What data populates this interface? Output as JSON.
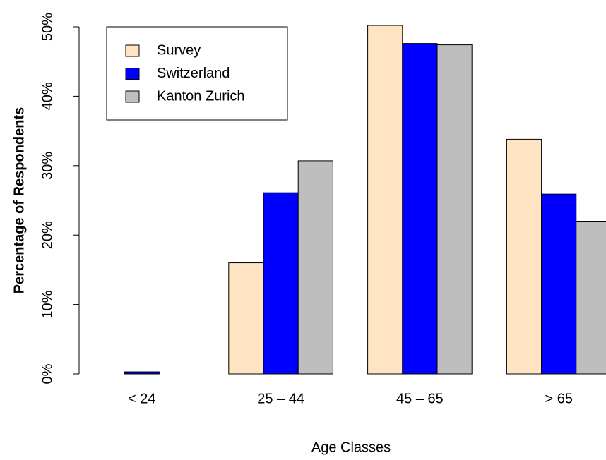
{
  "chart_data": {
    "type": "bar",
    "x_label": "Age Classes",
    "y_label": "Percentage of Respondents",
    "categories": [
      "< 24",
      "25 – 44",
      "45 – 65",
      "> 65"
    ],
    "series": [
      {
        "name": "Survey",
        "color": "#ffe4c4",
        "values": [
          0,
          16.0,
          50.2,
          33.8
        ]
      },
      {
        "name": "Switzerland",
        "color": "#0000ff",
        "values": [
          0.3,
          26.1,
          47.6,
          25.9
        ]
      },
      {
        "name": "Kanton Zurich",
        "color": "#bebebe",
        "values": [
          0,
          30.7,
          47.4,
          22.0
        ]
      }
    ],
    "ylim": [
      0,
      50
    ],
    "yticks": [
      {
        "value": 0,
        "label": "0%"
      },
      {
        "value": 10,
        "label": "10%"
      },
      {
        "value": 20,
        "label": "20%"
      },
      {
        "value": 30,
        "label": "30%"
      },
      {
        "value": 40,
        "label": "40%"
      },
      {
        "value": 50,
        "label": "50%"
      }
    ],
    "legend": "top-left"
  }
}
